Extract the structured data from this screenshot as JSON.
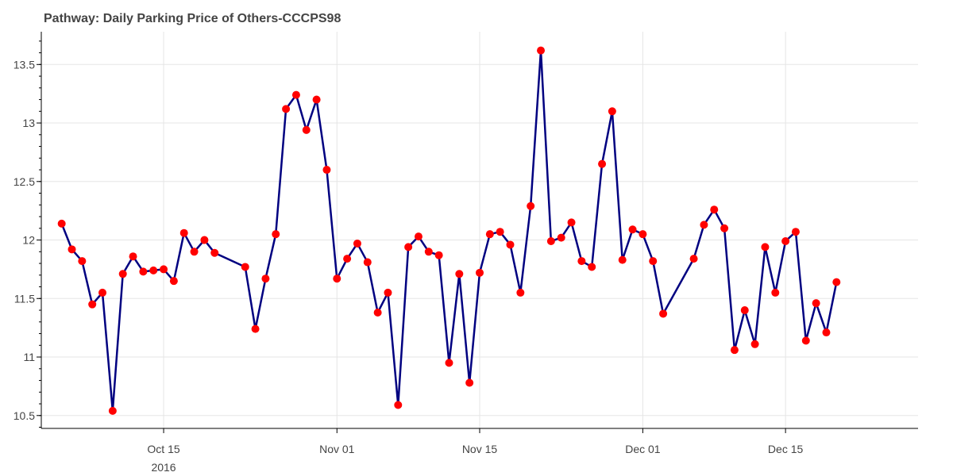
{
  "chart_data": {
    "type": "line",
    "title": "Pathway: Daily Parking Price of Others-CCCPS98",
    "xlabel": "",
    "ylabel": "",
    "x_axis_type": "date",
    "xlim": [
      "2016-10-03",
      "2016-12-28"
    ],
    "ylim": [
      10.39,
      13.78
    ],
    "y_ticks": [
      10.5,
      11,
      11.5,
      12,
      12.5,
      13,
      13.5
    ],
    "y_tick_labels": [
      "10.5",
      "11",
      "11.5",
      "12",
      "12.5",
      "13",
      "13.5"
    ],
    "x_ticks": [
      {
        "date": "2016-10-15",
        "label": "Oct 15",
        "sublabel": "2016"
      },
      {
        "date": "2016-11-01",
        "label": "Nov 01",
        "sublabel": ""
      },
      {
        "date": "2016-11-15",
        "label": "Nov 15",
        "sublabel": ""
      },
      {
        "date": "2016-12-01",
        "label": "Dec 01",
        "sublabel": ""
      },
      {
        "date": "2016-12-15",
        "label": "Dec 15",
        "sublabel": ""
      }
    ],
    "grid": true,
    "colors": {
      "line": "#000080",
      "marker": "#ff0000"
    },
    "series": [
      {
        "x": [
          "2016-10-05",
          "2016-10-06",
          "2016-10-07",
          "2016-10-08",
          "2016-10-09",
          "2016-10-10",
          "2016-10-11",
          "2016-10-12",
          "2016-10-13",
          "2016-10-14",
          "2016-10-15",
          "2016-10-16",
          "2016-10-17",
          "2016-10-18",
          "2016-10-19",
          "2016-10-20",
          "2016-10-23",
          "2016-10-24",
          "2016-10-25",
          "2016-10-26",
          "2016-10-27",
          "2016-10-28",
          "2016-10-29",
          "2016-10-30",
          "2016-10-31",
          "2016-11-01",
          "2016-11-02",
          "2016-11-03",
          "2016-11-04",
          "2016-11-05",
          "2016-11-06",
          "2016-11-07",
          "2016-11-08",
          "2016-11-09",
          "2016-11-10",
          "2016-11-11",
          "2016-11-12",
          "2016-11-13",
          "2016-11-14",
          "2016-11-15",
          "2016-11-16",
          "2016-11-17",
          "2016-11-18",
          "2016-11-19",
          "2016-11-20",
          "2016-11-21",
          "2016-11-22",
          "2016-11-23",
          "2016-11-24",
          "2016-11-25",
          "2016-11-26",
          "2016-11-27",
          "2016-11-28",
          "2016-11-29",
          "2016-11-30",
          "2016-12-01",
          "2016-12-02",
          "2016-12-03",
          "2016-12-06",
          "2016-12-07",
          "2016-12-08",
          "2016-12-09",
          "2016-12-10",
          "2016-12-11",
          "2016-12-12",
          "2016-12-13",
          "2016-12-14",
          "2016-12-15",
          "2016-12-16",
          "2016-12-17",
          "2016-12-18",
          "2016-12-19",
          "2016-12-20"
        ],
        "values": [
          12.14,
          11.92,
          11.82,
          11.45,
          11.55,
          10.54,
          11.71,
          11.86,
          11.73,
          11.74,
          11.75,
          11.65,
          12.06,
          11.9,
          12.0,
          11.89,
          11.77,
          11.24,
          11.67,
          12.05,
          13.12,
          13.24,
          12.94,
          13.2,
          12.6,
          11.67,
          11.84,
          11.97,
          11.81,
          11.38,
          11.55,
          10.59,
          11.94,
          12.03,
          11.9,
          11.87,
          10.95,
          11.71,
          10.78,
          11.72,
          12.05,
          12.07,
          11.96,
          11.55,
          12.29,
          13.62,
          11.99,
          12.02,
          12.15,
          11.82,
          11.77,
          12.65,
          13.1,
          11.83,
          12.09,
          12.05,
          11.82,
          11.37,
          11.84,
          12.13,
          12.26,
          12.1,
          11.06,
          11.4,
          11.11,
          11.94,
          11.55,
          11.99,
          12.07,
          11.14,
          11.46,
          11.21,
          11.64
        ]
      }
    ]
  }
}
